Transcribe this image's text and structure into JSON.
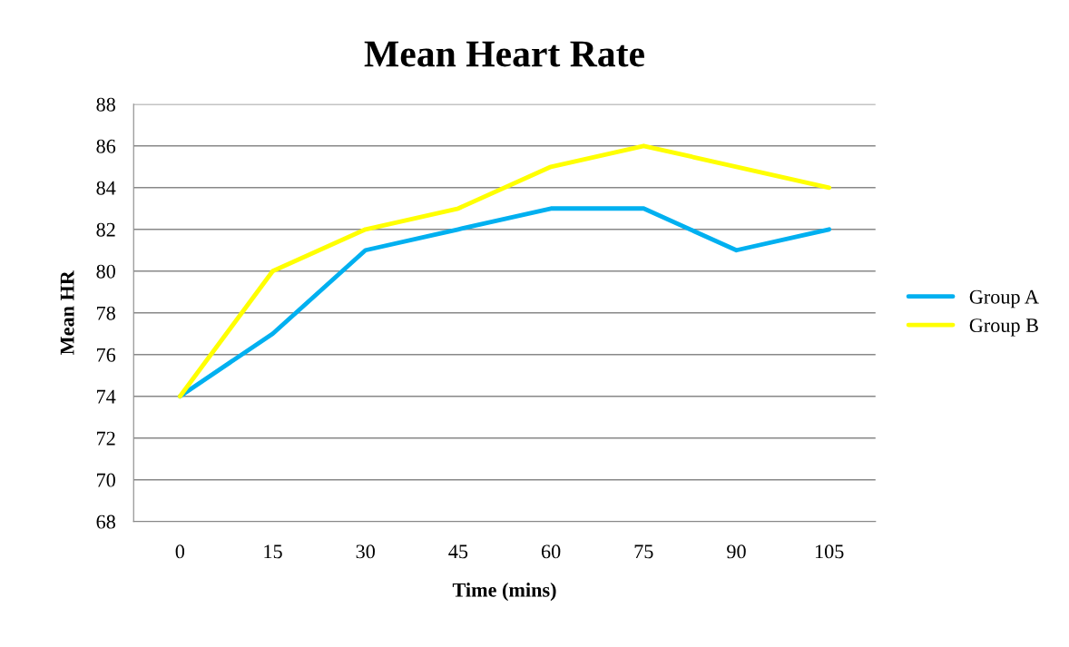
{
  "chart_data": {
    "type": "line",
    "title": "Mean Heart Rate",
    "xlabel": "Time (mins)",
    "ylabel": "Mean HR",
    "categories": [
      "0",
      "15",
      "30",
      "45",
      "60",
      "75",
      "90",
      "105"
    ],
    "series": [
      {
        "name": "Group A",
        "color": "#00b0f0",
        "values": [
          74,
          77,
          81,
          82,
          83,
          83,
          81,
          82
        ]
      },
      {
        "name": "Group B",
        "color": "#ffff00",
        "values": [
          74,
          80,
          82,
          83,
          85,
          86,
          85,
          84
        ]
      }
    ],
    "ylim": [
      68,
      88
    ],
    "yticks": [
      68,
      70,
      72,
      74,
      76,
      78,
      80,
      82,
      84,
      86,
      88
    ],
    "grid": "y",
    "legend": "right",
    "marker": "none",
    "line_style": "solid"
  }
}
